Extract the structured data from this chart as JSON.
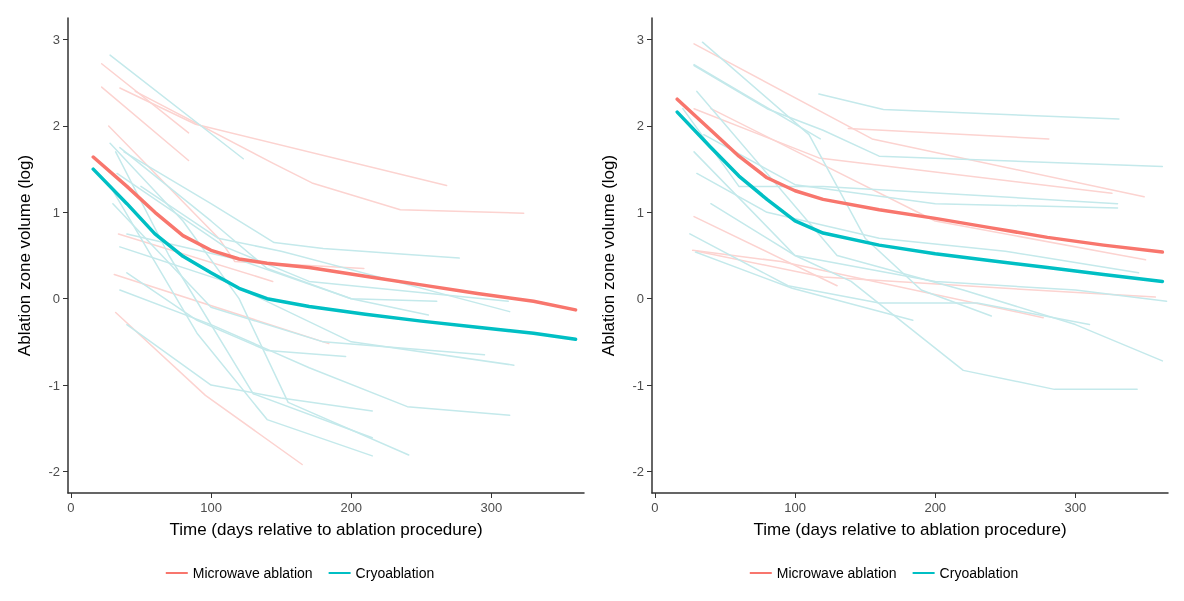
{
  "chart_data": [
    {
      "type": "line",
      "xlabel": "Time (days relative to ablation procedure)",
      "ylabel": "Ablation zone volume (log)",
      "xlim": [
        -2,
        366
      ],
      "ylim": [
        -2.25,
        3.25
      ],
      "xticks": [
        0,
        100,
        200,
        300
      ],
      "yticks": [
        -2,
        -1,
        0,
        1,
        2,
        3
      ],
      "grid": false,
      "legend": "bottom",
      "marker": "none",
      "series": [
        {
          "color": "#fcd3d0",
          "x": [
            22,
            84
          ],
          "values": [
            2.72,
            1.92
          ]
        },
        {
          "color": "#fcd3d0",
          "x": [
            22,
            84
          ],
          "values": [
            2.45,
            1.6
          ]
        },
        {
          "color": "#fcd3d0",
          "x": [
            46,
            144,
            172,
            235,
            323
          ],
          "values": [
            2.4,
            1.57,
            1.34,
            1.03,
            0.99
          ]
        },
        {
          "color": "#fcd3d0",
          "x": [
            35,
            89,
            268
          ],
          "values": [
            2.44,
            2.02,
            1.31
          ]
        },
        {
          "color": "#fcd3d0",
          "x": [
            27,
            106,
            117,
            209
          ],
          "values": [
            2.0,
            0.69,
            0.43,
            0.35
          ]
        },
        {
          "color": "#fcd3d0",
          "x": [
            31,
            184
          ],
          "values": [
            0.28,
            -0.52
          ]
        },
        {
          "color": "#fcd3d0",
          "x": [
            32,
            96,
            165
          ],
          "values": [
            -0.16,
            -1.12,
            -1.92
          ]
        },
        {
          "color": "#fcd3d0",
          "x": [
            34,
            144
          ],
          "values": [
            0.75,
            0.2
          ]
        },
        {
          "color": "#c4e9eb",
          "x": [
            28,
            123
          ],
          "values": [
            2.82,
            1.62
          ]
        },
        {
          "color": "#c4e9eb",
          "x": [
            28,
            80,
            120,
            155,
            241
          ],
          "values": [
            1.8,
            0.9,
            0.0,
            -1.2,
            -1.81
          ]
        },
        {
          "color": "#c4e9eb",
          "x": [
            32,
            70,
            130,
            215
          ],
          "values": [
            1.7,
            0.5,
            -1.1,
            -1.61
          ]
        },
        {
          "color": "#c4e9eb",
          "x": [
            30,
            90,
            140,
            215
          ],
          "values": [
            1.25,
            -0.4,
            -1.4,
            -1.82
          ]
        },
        {
          "color": "#c4e9eb",
          "x": [
            40,
            100,
            150,
            215
          ],
          "values": [
            -0.3,
            -1.0,
            -1.15,
            -1.3
          ]
        },
        {
          "color": "#c4e9eb",
          "x": [
            35,
            100,
            170,
            240,
            313
          ],
          "values": [
            0.1,
            -0.3,
            -0.8,
            -1.25,
            -1.35
          ]
        },
        {
          "color": "#c4e9eb",
          "x": [
            40,
            90,
            140,
            196
          ],
          "values": [
            0.3,
            -0.25,
            -0.6,
            -0.67
          ]
        },
        {
          "color": "#c4e9eb",
          "x": [
            30,
            100,
            180,
            295
          ],
          "values": [
            1.1,
            -0.1,
            -0.5,
            -0.65
          ]
        },
        {
          "color": "#c4e9eb",
          "x": [
            35,
            110,
            200,
            316
          ],
          "values": [
            0.6,
            0.2,
            -0.5,
            -0.77
          ]
        },
        {
          "color": "#c4e9eb",
          "x": [
            35,
            100,
            140,
            200,
            255
          ],
          "values": [
            1.75,
            0.9,
            0.35,
            0.0,
            -0.19
          ]
        },
        {
          "color": "#c4e9eb",
          "x": [
            50,
            105,
            150,
            313
          ],
          "values": [
            1.3,
            0.7,
            0.55,
            -0.15
          ]
        },
        {
          "color": "#c4e9eb",
          "x": [
            38,
            100,
            145,
            180,
            277
          ],
          "values": [
            1.7,
            1.1,
            0.65,
            0.58,
            0.47
          ]
        },
        {
          "color": "#c4e9eb",
          "x": [
            33,
            110,
            170,
            312
          ],
          "values": [
            1.45,
            0.6,
            0.2,
            -0.03
          ]
        },
        {
          "color": "#c4e9eb",
          "x": [
            40,
            120,
            200,
            261
          ],
          "values": [
            0.75,
            0.45,
            0.0,
            -0.03
          ]
        },
        {
          "name": "Microwave ablation",
          "color": "#f8766d",
          "x": [
            16,
            40,
            60,
            80,
            100,
            120,
            140,
            170,
            210,
            250,
            290,
            330,
            360
          ],
          "values": [
            1.64,
            1.3,
            1.0,
            0.73,
            0.56,
            0.46,
            0.41,
            0.36,
            0.26,
            0.16,
            0.06,
            -0.03,
            -0.13
          ]
        },
        {
          "name": "Cryoablation",
          "color": "#00bfc4",
          "x": [
            16,
            40,
            60,
            80,
            100,
            120,
            140,
            170,
            210,
            250,
            290,
            330,
            360
          ],
          "values": [
            1.5,
            1.1,
            0.75,
            0.49,
            0.3,
            0.12,
            0.0,
            -0.09,
            -0.18,
            -0.26,
            -0.33,
            -0.4,
            -0.47
          ]
        }
      ]
    },
    {
      "type": "line",
      "xlabel": "Time (days relative to ablation procedure)",
      "ylabel": "Ablation zone volume (log)",
      "xlim": [
        -2,
        366
      ],
      "ylim": [
        -2.25,
        3.25
      ],
      "xticks": [
        0,
        100,
        200,
        300
      ],
      "yticks": [
        -2,
        -1,
        0,
        1,
        2,
        3
      ],
      "grid": false,
      "legend": "bottom",
      "marker": "none",
      "series": [
        {
          "color": "#fcd3d0",
          "x": [
            28,
            155,
            349
          ],
          "values": [
            2.95,
            1.85,
            1.18
          ]
        },
        {
          "color": "#fcd3d0",
          "x": [
            138,
            281
          ],
          "values": [
            1.97,
            1.85
          ]
        },
        {
          "color": "#fcd3d0",
          "x": [
            28,
            117,
            326
          ],
          "values": [
            2.2,
            1.63,
            1.22
          ]
        },
        {
          "color": "#fcd3d0",
          "x": [
            28,
            130
          ],
          "values": [
            0.95,
            0.15
          ]
        },
        {
          "color": "#fcd3d0",
          "x": [
            27,
            90,
            277
          ],
          "values": [
            0.56,
            0.43,
            -0.22
          ]
        },
        {
          "color": "#fcd3d0",
          "x": [
            30,
            120,
            250,
            357
          ],
          "values": [
            0.55,
            0.25,
            0.12,
            0.02
          ]
        },
        {
          "color": "#fcd3d0",
          "x": [
            40,
            200,
            350
          ],
          "values": [
            2.2,
            0.9,
            0.45
          ]
        },
        {
          "color": "#c4e9eb",
          "x": [
            117,
            163,
            331
          ],
          "values": [
            2.37,
            2.19,
            2.08
          ]
        },
        {
          "color": "#c4e9eb",
          "x": [
            34,
            110,
            150,
            190,
            240
          ],
          "values": [
            2.97,
            1.9,
            0.7,
            0.1,
            -0.2
          ]
        },
        {
          "color": "#c4e9eb",
          "x": [
            28,
            80,
            120,
            160,
            362
          ],
          "values": [
            2.7,
            2.2,
            1.95,
            1.65,
            1.53
          ]
        },
        {
          "color": "#c4e9eb",
          "x": [
            28,
            118
          ],
          "values": [
            2.71,
            1.85
          ]
        },
        {
          "color": "#c4e9eb",
          "x": [
            20,
            60,
            120,
            330
          ],
          "values": [
            2.2,
            1.3,
            1.3,
            1.1
          ]
        },
        {
          "color": "#c4e9eb",
          "x": [
            30,
            80,
            160,
            250,
            345
          ],
          "values": [
            1.45,
            1.0,
            0.7,
            0.55,
            0.3
          ]
        },
        {
          "color": "#c4e9eb",
          "x": [
            29,
            98,
            184
          ],
          "values": [
            0.54,
            0.12,
            -0.25
          ]
        },
        {
          "color": "#c4e9eb",
          "x": [
            40,
            100,
            140,
            220,
            285,
            344
          ],
          "values": [
            1.1,
            0.5,
            0.2,
            -0.83,
            -1.05,
            -1.05
          ]
        },
        {
          "color": "#c4e9eb",
          "x": [
            25,
            95,
            160,
            230,
            310
          ],
          "values": [
            0.75,
            0.15,
            -0.05,
            -0.05,
            -0.3
          ]
        },
        {
          "color": "#c4e9eb",
          "x": [
            30,
            130,
            220,
            300,
            362
          ],
          "values": [
            2.4,
            0.5,
            0.1,
            -0.3,
            -0.72
          ]
        },
        {
          "color": "#c4e9eb",
          "x": [
            35,
            100,
            200,
            330
          ],
          "values": [
            1.9,
            1.32,
            1.1,
            1.05
          ]
        },
        {
          "color": "#c4e9eb",
          "x": [
            28,
            100,
            200,
            300,
            365
          ],
          "values": [
            1.7,
            0.5,
            0.2,
            0.1,
            -0.03
          ]
        },
        {
          "name": "Microwave ablation",
          "color": "#f8766d",
          "x": [
            16,
            40,
            60,
            80,
            100,
            120,
            160,
            200,
            240,
            280,
            320,
            362
          ],
          "values": [
            2.31,
            1.95,
            1.65,
            1.4,
            1.25,
            1.15,
            1.03,
            0.93,
            0.82,
            0.71,
            0.62,
            0.54
          ]
        },
        {
          "name": "Cryoablation",
          "color": "#00bfc4",
          "x": [
            16,
            40,
            60,
            80,
            100,
            120,
            160,
            200,
            240,
            280,
            320,
            362
          ],
          "values": [
            2.16,
            1.75,
            1.42,
            1.15,
            0.9,
            0.76,
            0.62,
            0.52,
            0.44,
            0.36,
            0.28,
            0.2
          ]
        }
      ]
    }
  ]
}
